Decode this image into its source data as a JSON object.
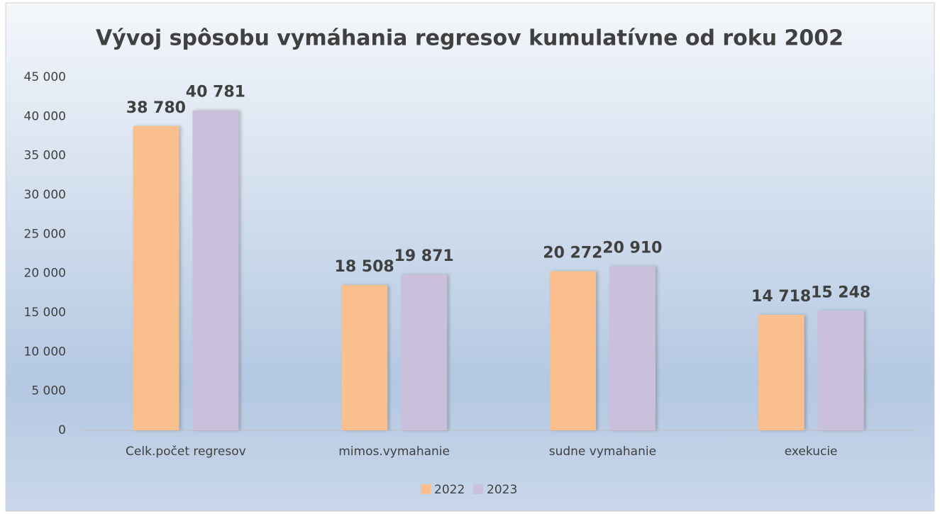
{
  "chart_data": {
    "type": "bar",
    "title": "Vývoj spôsobu vymáhania regresov kumulatívne od roku 2002",
    "categories": [
      "Celk.počet regresov",
      "mimos.vymahanie",
      "sudne vymahanie",
      "exekucie"
    ],
    "series": [
      {
        "name": "2022",
        "color": "#f9c08e",
        "values": [
          38780,
          18508,
          20272,
          14718
        ],
        "value_labels": [
          "38 780",
          "18 508",
          "20 272",
          "14 718"
        ]
      },
      {
        "name": "2023",
        "color": "#cbc0db",
        "values": [
          40781,
          19871,
          20910,
          15248
        ],
        "value_labels": [
          "40 781",
          "19 871",
          "20 910",
          "15 248"
        ]
      }
    ],
    "ylim": [
      0,
      45000
    ],
    "yticks": [
      0,
      {
        "value": 5000,
        "label": "5 000"
      },
      {
        "value": 10000,
        "label": "10 000"
      },
      {
        "value": 15000,
        "label": "15 000"
      },
      {
        "value": 20000,
        "label": "20 000"
      },
      {
        "value": 25000,
        "label": "25 000"
      },
      {
        "value": 30000,
        "label": "30 000"
      },
      {
        "value": 35000,
        "label": "35 000"
      },
      {
        "value": 40000,
        "label": "40 000"
      },
      {
        "value": 45000,
        "label": "45 000"
      }
    ],
    "grid": false,
    "legend": "bottom"
  }
}
